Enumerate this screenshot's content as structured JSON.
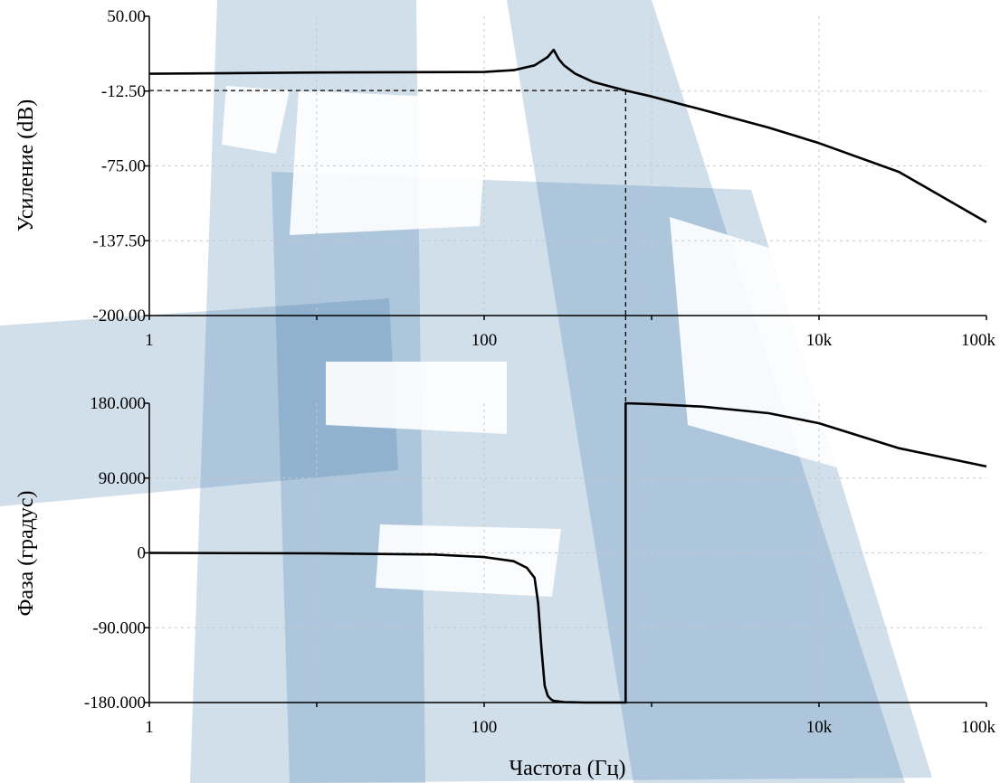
{
  "chart_data": [
    {
      "type": "line",
      "xscale": "log",
      "xlim": [
        1,
        100000
      ],
      "ylim": [
        -200,
        50
      ],
      "xlabel": "",
      "ylabel": "Усиление (dB)",
      "x_ticks": [
        "1",
        "100",
        "10k",
        "100k"
      ],
      "y_ticks": [
        "50.00",
        "-12.50",
        "-75.00",
        "-137.50",
        "-200.00"
      ],
      "grid": true,
      "series": [
        {
          "x": [
            1,
            10,
            100,
            150,
            200,
            240,
            260,
            280,
            300,
            350,
            450,
            700,
            1000,
            2000,
            5000,
            10000,
            30000,
            100000
          ],
          "y": [
            2,
            3,
            3.5,
            5,
            9,
            16,
            22,
            14,
            9,
            2,
            -5,
            -12,
            -17,
            -28,
            -43,
            -56,
            -80,
            -122
          ]
        }
      ],
      "annotation": {
        "x": 700,
        "y": -12
      }
    },
    {
      "type": "line",
      "xscale": "log",
      "xlim": [
        1,
        100000
      ],
      "ylim": [
        -180,
        180
      ],
      "xlabel": "Частота (Гц)",
      "ylabel": "Фаза (градус)",
      "x_ticks": [
        "1",
        "100",
        "10k",
        "100k"
      ],
      "y_ticks": [
        "180.000",
        "90.000",
        "0",
        "-90.000",
        "-180.000"
      ],
      "grid": true,
      "series": [
        {
          "x": [
            1,
            10,
            50,
            100,
            150,
            180,
            200,
            210,
            220,
            230,
            240,
            250,
            260,
            300,
            400,
            700,
            700,
            1000,
            2000,
            5000,
            10000,
            30000,
            100000
          ],
          "y": [
            0,
            -0.5,
            -2,
            -5,
            -10,
            -18,
            -30,
            -60,
            -115,
            -160,
            -172,
            -176,
            -178,
            -179.5,
            -180,
            -180,
            180,
            179,
            176,
            168,
            156,
            126,
            104
          ]
        }
      ],
      "annotation": {
        "x": 700
      }
    }
  ]
}
